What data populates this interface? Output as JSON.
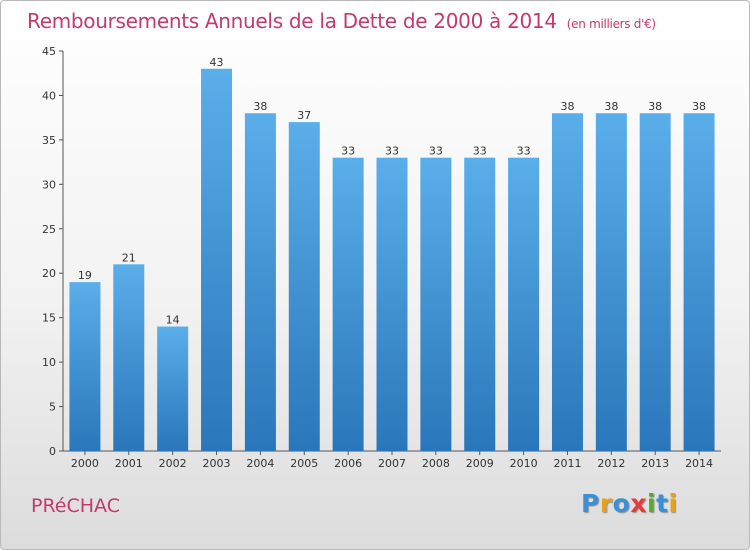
{
  "title": "Remboursements Annuels de la Dette de 2000 à 2014",
  "subtitle": "(en milliers d'€)",
  "commune": "PRéCHAC",
  "logo": {
    "text": "Proxiti",
    "letters": [
      "P",
      "r",
      "o",
      "x",
      "i",
      "t",
      "i"
    ],
    "colors": [
      "#3a8fd6",
      "#e8a21a",
      "#3a8fd6",
      "#e23c3c",
      "#5aa832",
      "#3a8fd6",
      "#e8a21a"
    ]
  },
  "colors": {
    "bar": "#4a9ee0",
    "bar_dark": "#2c78bd",
    "title": "#c23a6e"
  },
  "chart_data": {
    "type": "bar",
    "title": "Remboursements Annuels de la Dette de 2000 à 2014",
    "ylabel": "",
    "xlabel": "",
    "categories": [
      "2000",
      "2001",
      "2002",
      "2003",
      "2004",
      "2005",
      "2006",
      "2007",
      "2008",
      "2009",
      "2010",
      "2011",
      "2012",
      "2013",
      "2014"
    ],
    "values": [
      19,
      21,
      14,
      43,
      38,
      37,
      33,
      33,
      33,
      33,
      33,
      38,
      38,
      38,
      38
    ],
    "ylim": [
      0,
      45
    ],
    "yticks": [
      0,
      5,
      10,
      15,
      20,
      25,
      30,
      35,
      40,
      45
    ],
    "grid": false
  }
}
